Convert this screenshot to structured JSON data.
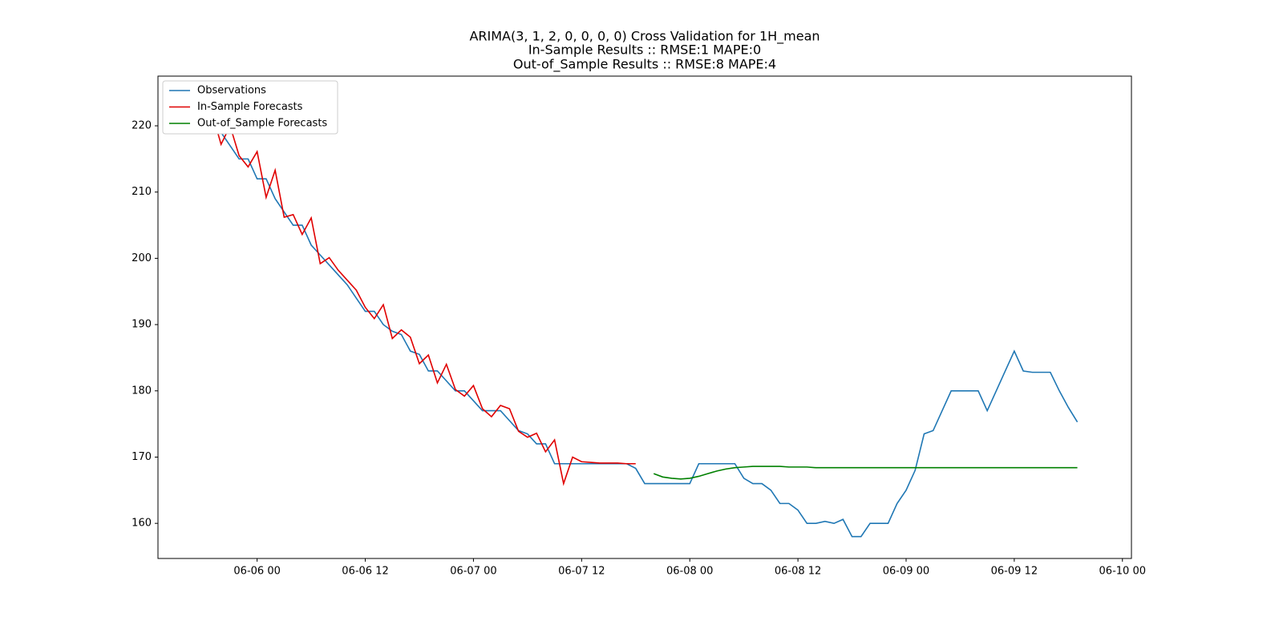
{
  "chart_data": {
    "type": "line",
    "title": "ARIMA(3, 1, 2, 0, 0, 0, 0) Cross Validation for 1H_mean",
    "subtitle": [
      "In-Sample Results :: RMSE:1 MAPE:0",
      "Out-of_Sample Results :: RMSE:8 MAPE:4"
    ],
    "xlim": [
      "06-05 13",
      "06-10 01"
    ],
    "xticks": [
      "06-06 00",
      "06-06 12",
      "06-07 00",
      "06-07 12",
      "06-08 00",
      "06-08 12",
      "06-09 00",
      "06-09 12",
      "06-10 00"
    ],
    "ylim": [
      154.7,
      227.5
    ],
    "yticks": [
      160,
      170,
      180,
      190,
      200,
      210,
      220
    ],
    "legend": "upper left",
    "series": [
      {
        "name": "Observations",
        "color": "#1f77b4",
        "x": [
          "06-05 18",
          "06-05 19",
          "06-05 20",
          "06-05 21",
          "06-05 22",
          "06-05 23",
          "06-06 00",
          "06-06 01",
          "06-06 02",
          "06-06 03",
          "06-06 04",
          "06-06 05",
          "06-06 06",
          "06-06 07",
          "06-06 08",
          "06-06 09",
          "06-06 10",
          "06-06 11",
          "06-06 12",
          "06-06 13",
          "06-06 14",
          "06-06 15",
          "06-06 16",
          "06-06 17",
          "06-06 18",
          "06-06 19",
          "06-06 20",
          "06-06 21",
          "06-06 22",
          "06-06 23",
          "06-07 00",
          "06-07 01",
          "06-07 02",
          "06-07 03",
          "06-07 04",
          "06-07 05",
          "06-07 06",
          "06-07 07",
          "06-07 08",
          "06-07 09",
          "06-07 10",
          "06-07 11",
          "06-07 12",
          "06-07 13",
          "06-07 14",
          "06-07 15",
          "06-07 16",
          "06-07 17",
          "06-07 18",
          "06-07 19",
          "06-07 20",
          "06-07 21",
          "06-07 22",
          "06-07 23",
          "06-08 00",
          "06-08 01",
          "06-08 02",
          "06-08 03",
          "06-08 04",
          "06-08 05",
          "06-08 06",
          "06-08 07",
          "06-08 08",
          "06-08 09",
          "06-08 10",
          "06-08 11",
          "06-08 12",
          "06-08 13",
          "06-08 14",
          "06-08 15",
          "06-08 16",
          "06-08 17",
          "06-08 18",
          "06-08 19",
          "06-08 20",
          "06-08 21",
          "06-08 22",
          "06-08 23",
          "06-09 00",
          "06-09 01",
          "06-09 02",
          "06-09 03",
          "06-09 04",
          "06-09 05",
          "06-09 06",
          "06-09 07",
          "06-09 08",
          "06-09 09",
          "06-09 10",
          "06-09 11",
          "06-09 12",
          "06-09 13",
          "06-09 14",
          "06-09 15",
          "06-09 16",
          "06-09 17",
          "06-09 18",
          "06-09 19"
        ],
        "values": [
          223,
          221,
          219,
          217,
          215,
          215,
          212,
          212,
          209,
          207,
          205,
          205,
          202,
          200.5,
          199,
          197.5,
          196,
          194,
          192,
          192,
          190,
          189,
          188.5,
          186,
          185.5,
          183,
          183,
          181.5,
          180,
          180,
          178.5,
          177,
          177,
          177,
          175.5,
          174,
          173.5,
          172,
          172,
          169,
          169,
          169,
          169,
          169,
          169,
          169,
          169,
          169,
          168.3,
          166,
          166,
          166,
          166,
          166,
          166,
          169,
          169,
          169,
          169,
          169,
          166.8,
          166,
          166,
          165,
          163,
          163,
          162,
          160,
          160,
          160.3,
          160,
          160.6,
          158,
          158,
          160,
          160,
          160,
          163,
          165,
          168,
          173.5,
          174,
          177,
          180,
          180,
          180,
          180,
          177,
          180,
          183,
          186,
          183,
          182.8,
          182.8,
          182.8,
          180,
          177.5,
          175.3
        ]
      },
      {
        "name": "In-Sample Forecasts",
        "color": "#e00000",
        "x": [
          "06-05 18",
          "06-05 19",
          "06-05 20",
          "06-05 21",
          "06-05 22",
          "06-05 23",
          "06-06 00",
          "06-06 01",
          "06-06 02",
          "06-06 03",
          "06-06 04",
          "06-06 05",
          "06-06 06",
          "06-06 07",
          "06-06 08",
          "06-06 09",
          "06-06 10",
          "06-06 11",
          "06-06 12",
          "06-06 13",
          "06-06 14",
          "06-06 15",
          "06-06 16",
          "06-06 17",
          "06-06 18",
          "06-06 19",
          "06-06 20",
          "06-06 21",
          "06-06 22",
          "06-06 23",
          "06-07 00",
          "06-07 01",
          "06-07 02",
          "06-07 03",
          "06-07 04",
          "06-07 05",
          "06-07 06",
          "06-07 07",
          "06-07 08",
          "06-07 09",
          "06-07 10",
          "06-07 11",
          "06-07 12",
          "06-07 13",
          "06-07 14",
          "06-07 15",
          "06-07 16",
          "06-07 17",
          "06-07 18"
        ],
        "values": [
          223.3,
          222,
          217.2,
          220,
          215.5,
          213.8,
          216.1,
          209.2,
          213.3,
          206.2,
          206.6,
          203.6,
          206.1,
          199.2,
          200.1,
          198.2,
          196.7,
          195.2,
          192.6,
          190.9,
          193.0,
          187.9,
          189.2,
          188.1,
          184.1,
          185.4,
          181.2,
          184,
          180.2,
          179.2,
          180.8,
          177.3,
          176.1,
          177.8,
          177.3,
          173.9,
          173,
          173.6,
          170.8,
          172.6,
          166,
          170,
          169.3,
          169.2,
          169.1,
          169.1,
          169.1,
          169.0,
          169.0
        ]
      },
      {
        "name": "Out-of_Sample Forecasts",
        "color": "#008000",
        "x": [
          "06-07 20",
          "06-07 21",
          "06-07 22",
          "06-07 23",
          "06-08 00",
          "06-08 01",
          "06-08 02",
          "06-08 03",
          "06-08 04",
          "06-08 05",
          "06-08 06",
          "06-08 07",
          "06-08 08",
          "06-08 09",
          "06-08 10",
          "06-08 11",
          "06-08 12",
          "06-08 13",
          "06-08 14",
          "06-08 15",
          "06-08 16",
          "06-08 17",
          "06-08 18",
          "06-08 19",
          "06-08 20",
          "06-08 21",
          "06-08 22",
          "06-08 23",
          "06-09 00",
          "06-09 01",
          "06-09 02",
          "06-09 03",
          "06-09 04",
          "06-09 05",
          "06-09 06",
          "06-09 07",
          "06-09 08",
          "06-09 09",
          "06-09 10",
          "06-09 11",
          "06-09 12",
          "06-09 13",
          "06-09 14",
          "06-09 15",
          "06-09 16",
          "06-09 17",
          "06-09 18",
          "06-09 19"
        ],
        "values": [
          167.5,
          167.0,
          166.8,
          166.7,
          166.8,
          167.1,
          167.5,
          167.9,
          168.2,
          168.4,
          168.5,
          168.6,
          168.6,
          168.6,
          168.6,
          168.5,
          168.5,
          168.5,
          168.4,
          168.4,
          168.4,
          168.4,
          168.4,
          168.4,
          168.4,
          168.4,
          168.4,
          168.4,
          168.4,
          168.4,
          168.4,
          168.4,
          168.4,
          168.4,
          168.4,
          168.4,
          168.4,
          168.4,
          168.4,
          168.4,
          168.4,
          168.4,
          168.4,
          168.4,
          168.4,
          168.4,
          168.4,
          168.4
        ]
      }
    ]
  }
}
